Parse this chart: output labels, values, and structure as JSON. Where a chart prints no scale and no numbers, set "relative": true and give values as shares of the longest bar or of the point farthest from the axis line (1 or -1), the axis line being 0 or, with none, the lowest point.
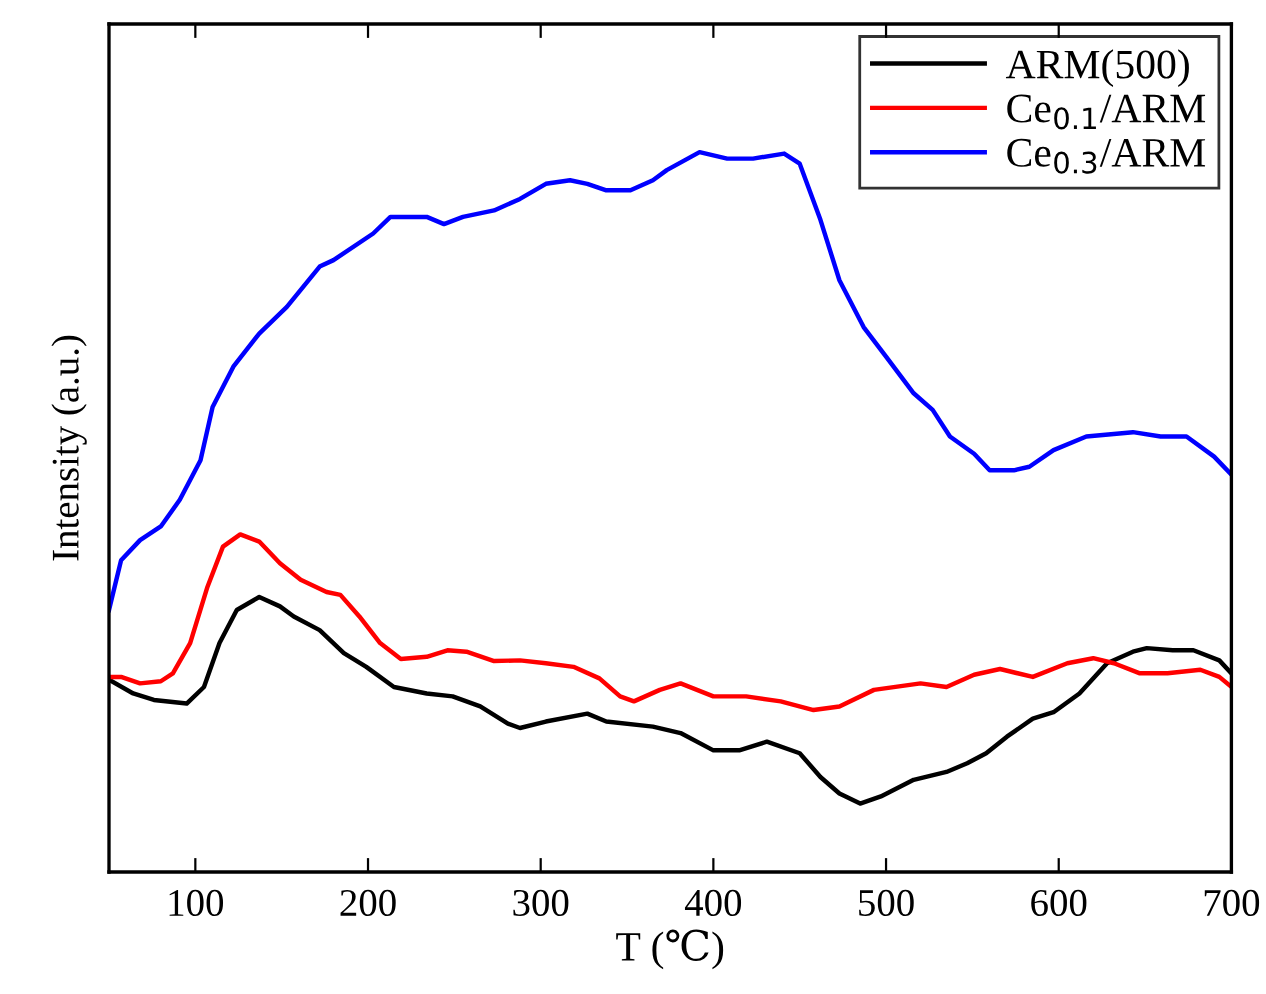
{
  "chart_data": {
    "type": "line",
    "relative": true,
    "xlabel": "T (℃)",
    "ylabel": "Intensity (a.u.)",
    "xlim": [
      50,
      700
    ],
    "xticks": [
      100,
      200,
      300,
      400,
      500,
      600,
      700
    ],
    "tick_labels": "x",
    "grid": false,
    "legend": "top right",
    "marker": "none",
    "line_style": "solid",
    "series": [
      {
        "name": "ARM(500)",
        "color": "#000000",
        "x": [
          50,
          64,
          76,
          95,
          105,
          114,
          124,
          137,
          149,
          157,
          172,
          186,
          199,
          215,
          234,
          249,
          265,
          281,
          288,
          303,
          327,
          338,
          365,
          381,
          400,
          415,
          431,
          450,
          462,
          473,
          485,
          497,
          516,
          535,
          547,
          558,
          570,
          585,
          597,
          612,
          628,
          643,
          651,
          666,
          678,
          693,
          700
        ],
        "values": [
          0.267,
          0.248,
          0.239,
          0.234,
          0.257,
          0.318,
          0.364,
          0.382,
          0.369,
          0.355,
          0.336,
          0.304,
          0.285,
          0.257,
          0.248,
          0.244,
          0.23,
          0.206,
          0.2,
          0.209,
          0.22,
          0.209,
          0.202,
          0.193,
          0.169,
          0.169,
          0.181,
          0.165,
          0.132,
          0.109,
          0.095,
          0.105,
          0.128,
          0.139,
          0.151,
          0.165,
          0.188,
          0.213,
          0.222,
          0.248,
          0.29,
          0.306,
          0.311,
          0.308,
          0.308,
          0.294,
          0.276
        ]
      },
      {
        "name": "Ce$_{0.1}$/ARM",
        "color": "#ff0000",
        "x": [
          50,
          57,
          68,
          80,
          87,
          97,
          107,
          116,
          126,
          137,
          149,
          161,
          176,
          184,
          195,
          207,
          219,
          234,
          246,
          257,
          273,
          288,
          303,
          319,
          334,
          346,
          354,
          369,
          381,
          400,
          419,
          439,
          458,
          473,
          493,
          520,
          535,
          551,
          566,
          585,
          605,
          620,
          632,
          647,
          663,
          682,
          693,
          700
        ],
        "values": [
          0.271,
          0.271,
          0.262,
          0.265,
          0.276,
          0.318,
          0.396,
          0.452,
          0.469,
          0.459,
          0.429,
          0.406,
          0.389,
          0.385,
          0.355,
          0.318,
          0.296,
          0.299,
          0.308,
          0.306,
          0.293,
          0.294,
          0.29,
          0.285,
          0.269,
          0.244,
          0.237,
          0.253,
          0.262,
          0.244,
          0.244,
          0.237,
          0.225,
          0.23,
          0.253,
          0.262,
          0.257,
          0.274,
          0.282,
          0.271,
          0.29,
          0.297,
          0.29,
          0.276,
          0.276,
          0.281,
          0.271,
          0.257
        ]
      },
      {
        "name": "Ce$_{0.3}$/ARM",
        "color": "#0000ff",
        "x": [
          50,
          57,
          68,
          80,
          91,
          103,
          110,
          122,
          137,
          153,
          172,
          180,
          203,
          213,
          234,
          244,
          255,
          273,
          288,
          303,
          317,
          327,
          338,
          352,
          365,
          373,
          392,
          408,
          423,
          441,
          450,
          462,
          473,
          487,
          500,
          516,
          527,
          537,
          551,
          560,
          574,
          583,
          597,
          616,
          643,
          659,
          674,
          690,
          700
        ],
        "values": [
          0.364,
          0.433,
          0.461,
          0.48,
          0.517,
          0.572,
          0.646,
          0.702,
          0.748,
          0.785,
          0.841,
          0.85,
          0.887,
          0.91,
          0.91,
          0.9,
          0.91,
          0.919,
          0.935,
          0.956,
          0.961,
          0.956,
          0.947,
          0.947,
          0.961,
          0.975,
          1.0,
          0.991,
          0.991,
          0.998,
          0.984,
          0.906,
          0.822,
          0.757,
          0.716,
          0.665,
          0.642,
          0.605,
          0.581,
          0.558,
          0.558,
          0.563,
          0.586,
          0.605,
          0.611,
          0.605,
          0.605,
          0.577,
          0.552
        ]
      }
    ]
  }
}
